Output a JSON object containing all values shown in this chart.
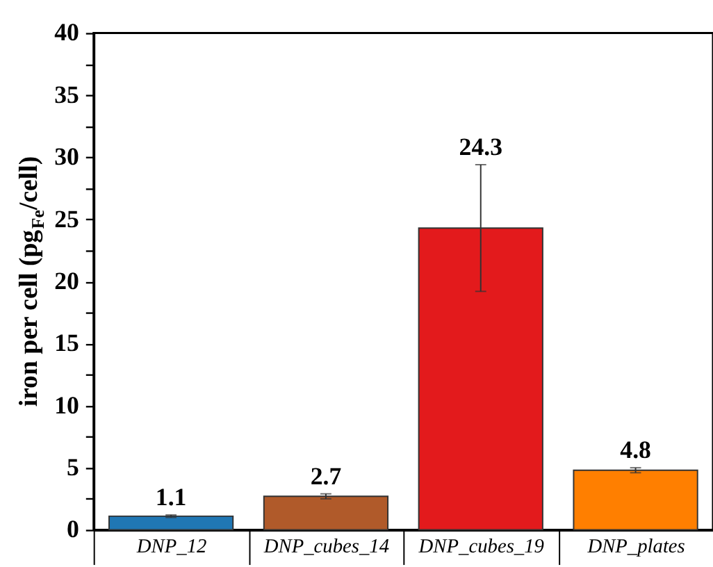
{
  "chart_data": {
    "type": "bar",
    "ylabel": "iron per cell (pg$_{Fe}$/cell)",
    "categories": [
      "DNP_12",
      "DNP_cubes_14",
      "DNP_cubes_19",
      "DNP_plates"
    ],
    "values": [
      1.1,
      2.7,
      24.3,
      4.8
    ],
    "colors": [
      "#2077b4",
      "#b05a2a",
      "#e31a1c",
      "#ff7f00"
    ],
    "errors": [
      0.1,
      0.2,
      5.1,
      0.2
    ],
    "ylim": [
      0,
      40
    ],
    "yticks": [
      0,
      {
        "value": 2.5,
        "label": null
      },
      5,
      {
        "value": 7.5,
        "label": null
      },
      10,
      {
        "value": 12.5,
        "label": null
      },
      15,
      {
        "value": 17.5,
        "label": null
      },
      20,
      {
        "value": 22.5,
        "label": null
      },
      25,
      {
        "value": 27.5,
        "label": null
      },
      30,
      {
        "value": 32.5,
        "label": null
      },
      35,
      {
        "value": 37.5,
        "label": null
      },
      40
    ],
    "data_labels": true,
    "grid": false,
    "legend": false
  }
}
